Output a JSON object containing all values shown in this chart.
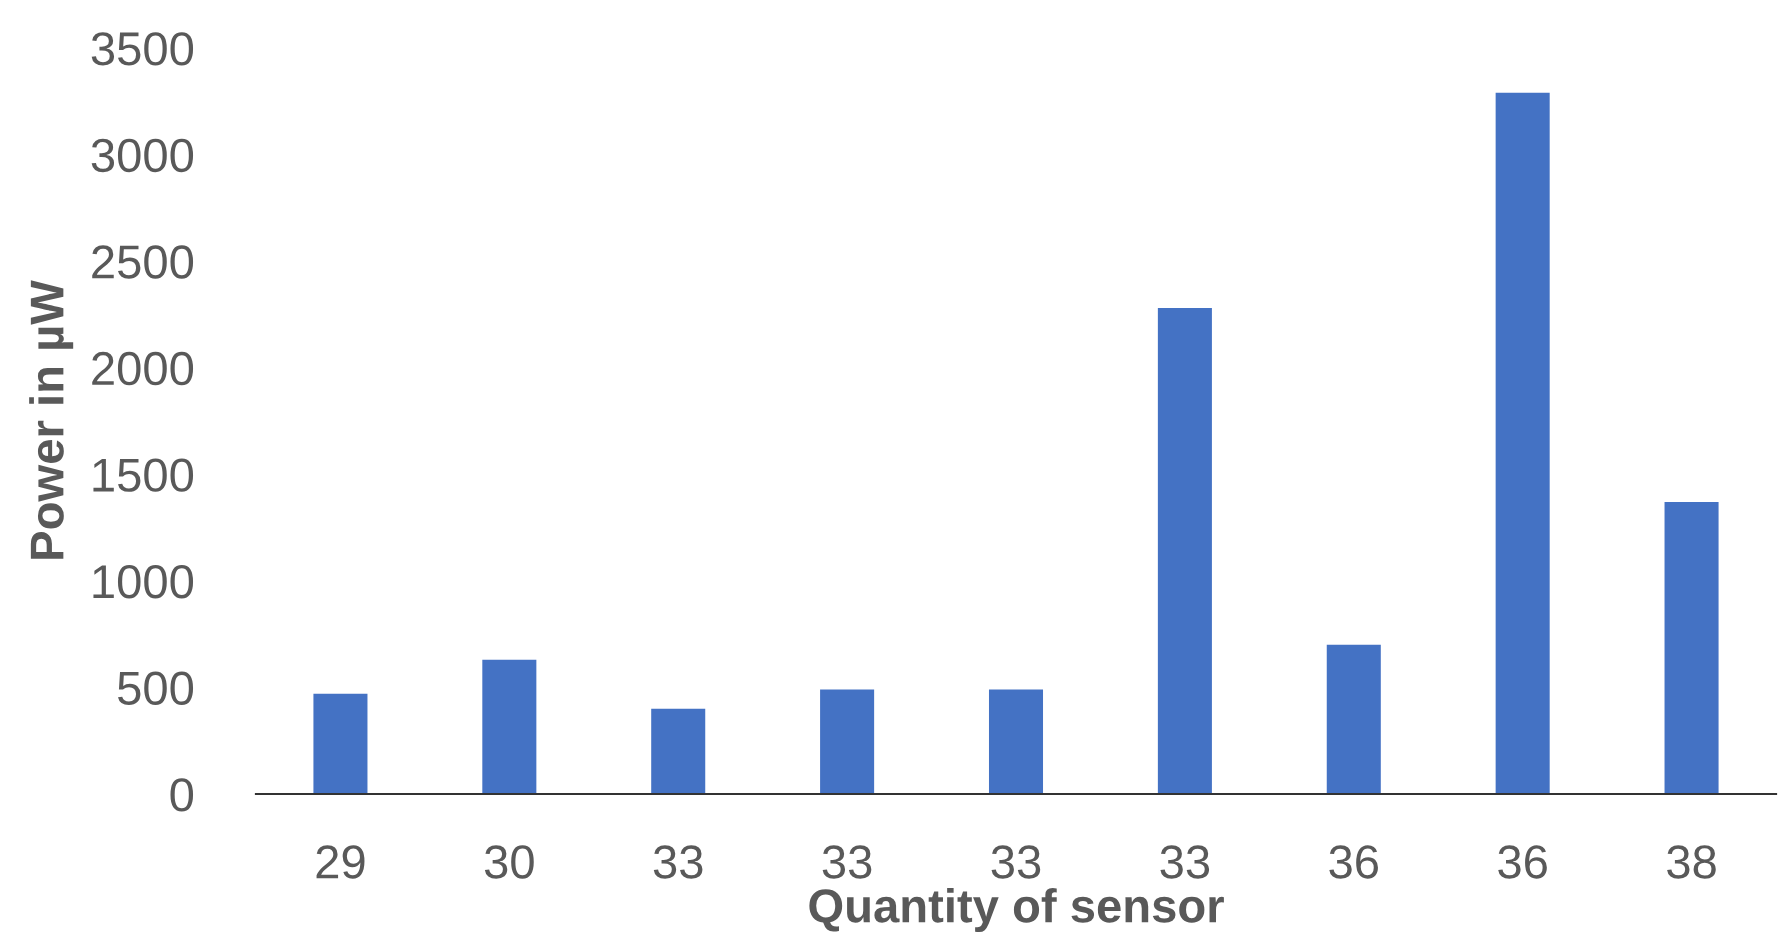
{
  "chart_data": {
    "type": "bar",
    "xlabel": "Quantity of sensor",
    "ylabel": "Power in µW",
    "categories": [
      "29",
      "30",
      "33",
      "33",
      "33",
      "33",
      "36",
      "36",
      "38"
    ],
    "values": [
      470,
      630,
      400,
      490,
      490,
      2280,
      700,
      3290,
      1370
    ],
    "color": "#4472c4",
    "ylim": [
      0,
      3500
    ],
    "yticks": [
      0,
      500,
      1000,
      1500,
      2000,
      2500,
      3000,
      3500
    ],
    "grid": false,
    "legend": false
  }
}
